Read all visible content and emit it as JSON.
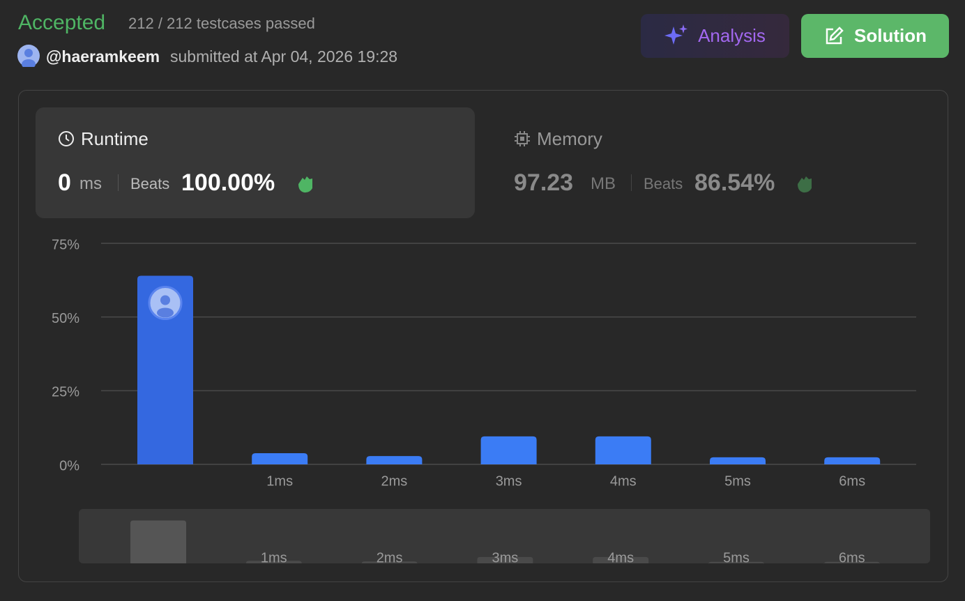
{
  "header": {
    "status": "Accepted",
    "testcases": "212 / 212 testcases passed",
    "user": "@haeramkeem",
    "submitted": "submitted at Apr 04, 2026 19:28"
  },
  "buttons": {
    "analysis": "Analysis",
    "solution": "Solution"
  },
  "runtime": {
    "label": "Runtime",
    "value": "0",
    "unit": "ms",
    "beats_label": "Beats",
    "beats": "100.00%"
  },
  "memory": {
    "label": "Memory",
    "value": "97.23",
    "unit": "MB",
    "beats_label": "Beats",
    "beats": "86.54%"
  },
  "chart_data": {
    "type": "bar",
    "categories": [
      null,
      "1ms",
      "2ms",
      "3ms",
      "4ms",
      "5ms",
      "6ms"
    ],
    "values": [
      64,
      3.8,
      2.8,
      9.5,
      9.5,
      2.4,
      2.4
    ],
    "color": "#3b7cf5",
    "ylim": [
      0,
      75
    ],
    "yticks": [
      {
        "value": 0,
        "label": "0%"
      },
      {
        "value": 25,
        "label": "25%"
      },
      {
        "value": 50,
        "label": "50%"
      },
      {
        "value": 75,
        "label": "75%"
      }
    ],
    "grid": true
  }
}
